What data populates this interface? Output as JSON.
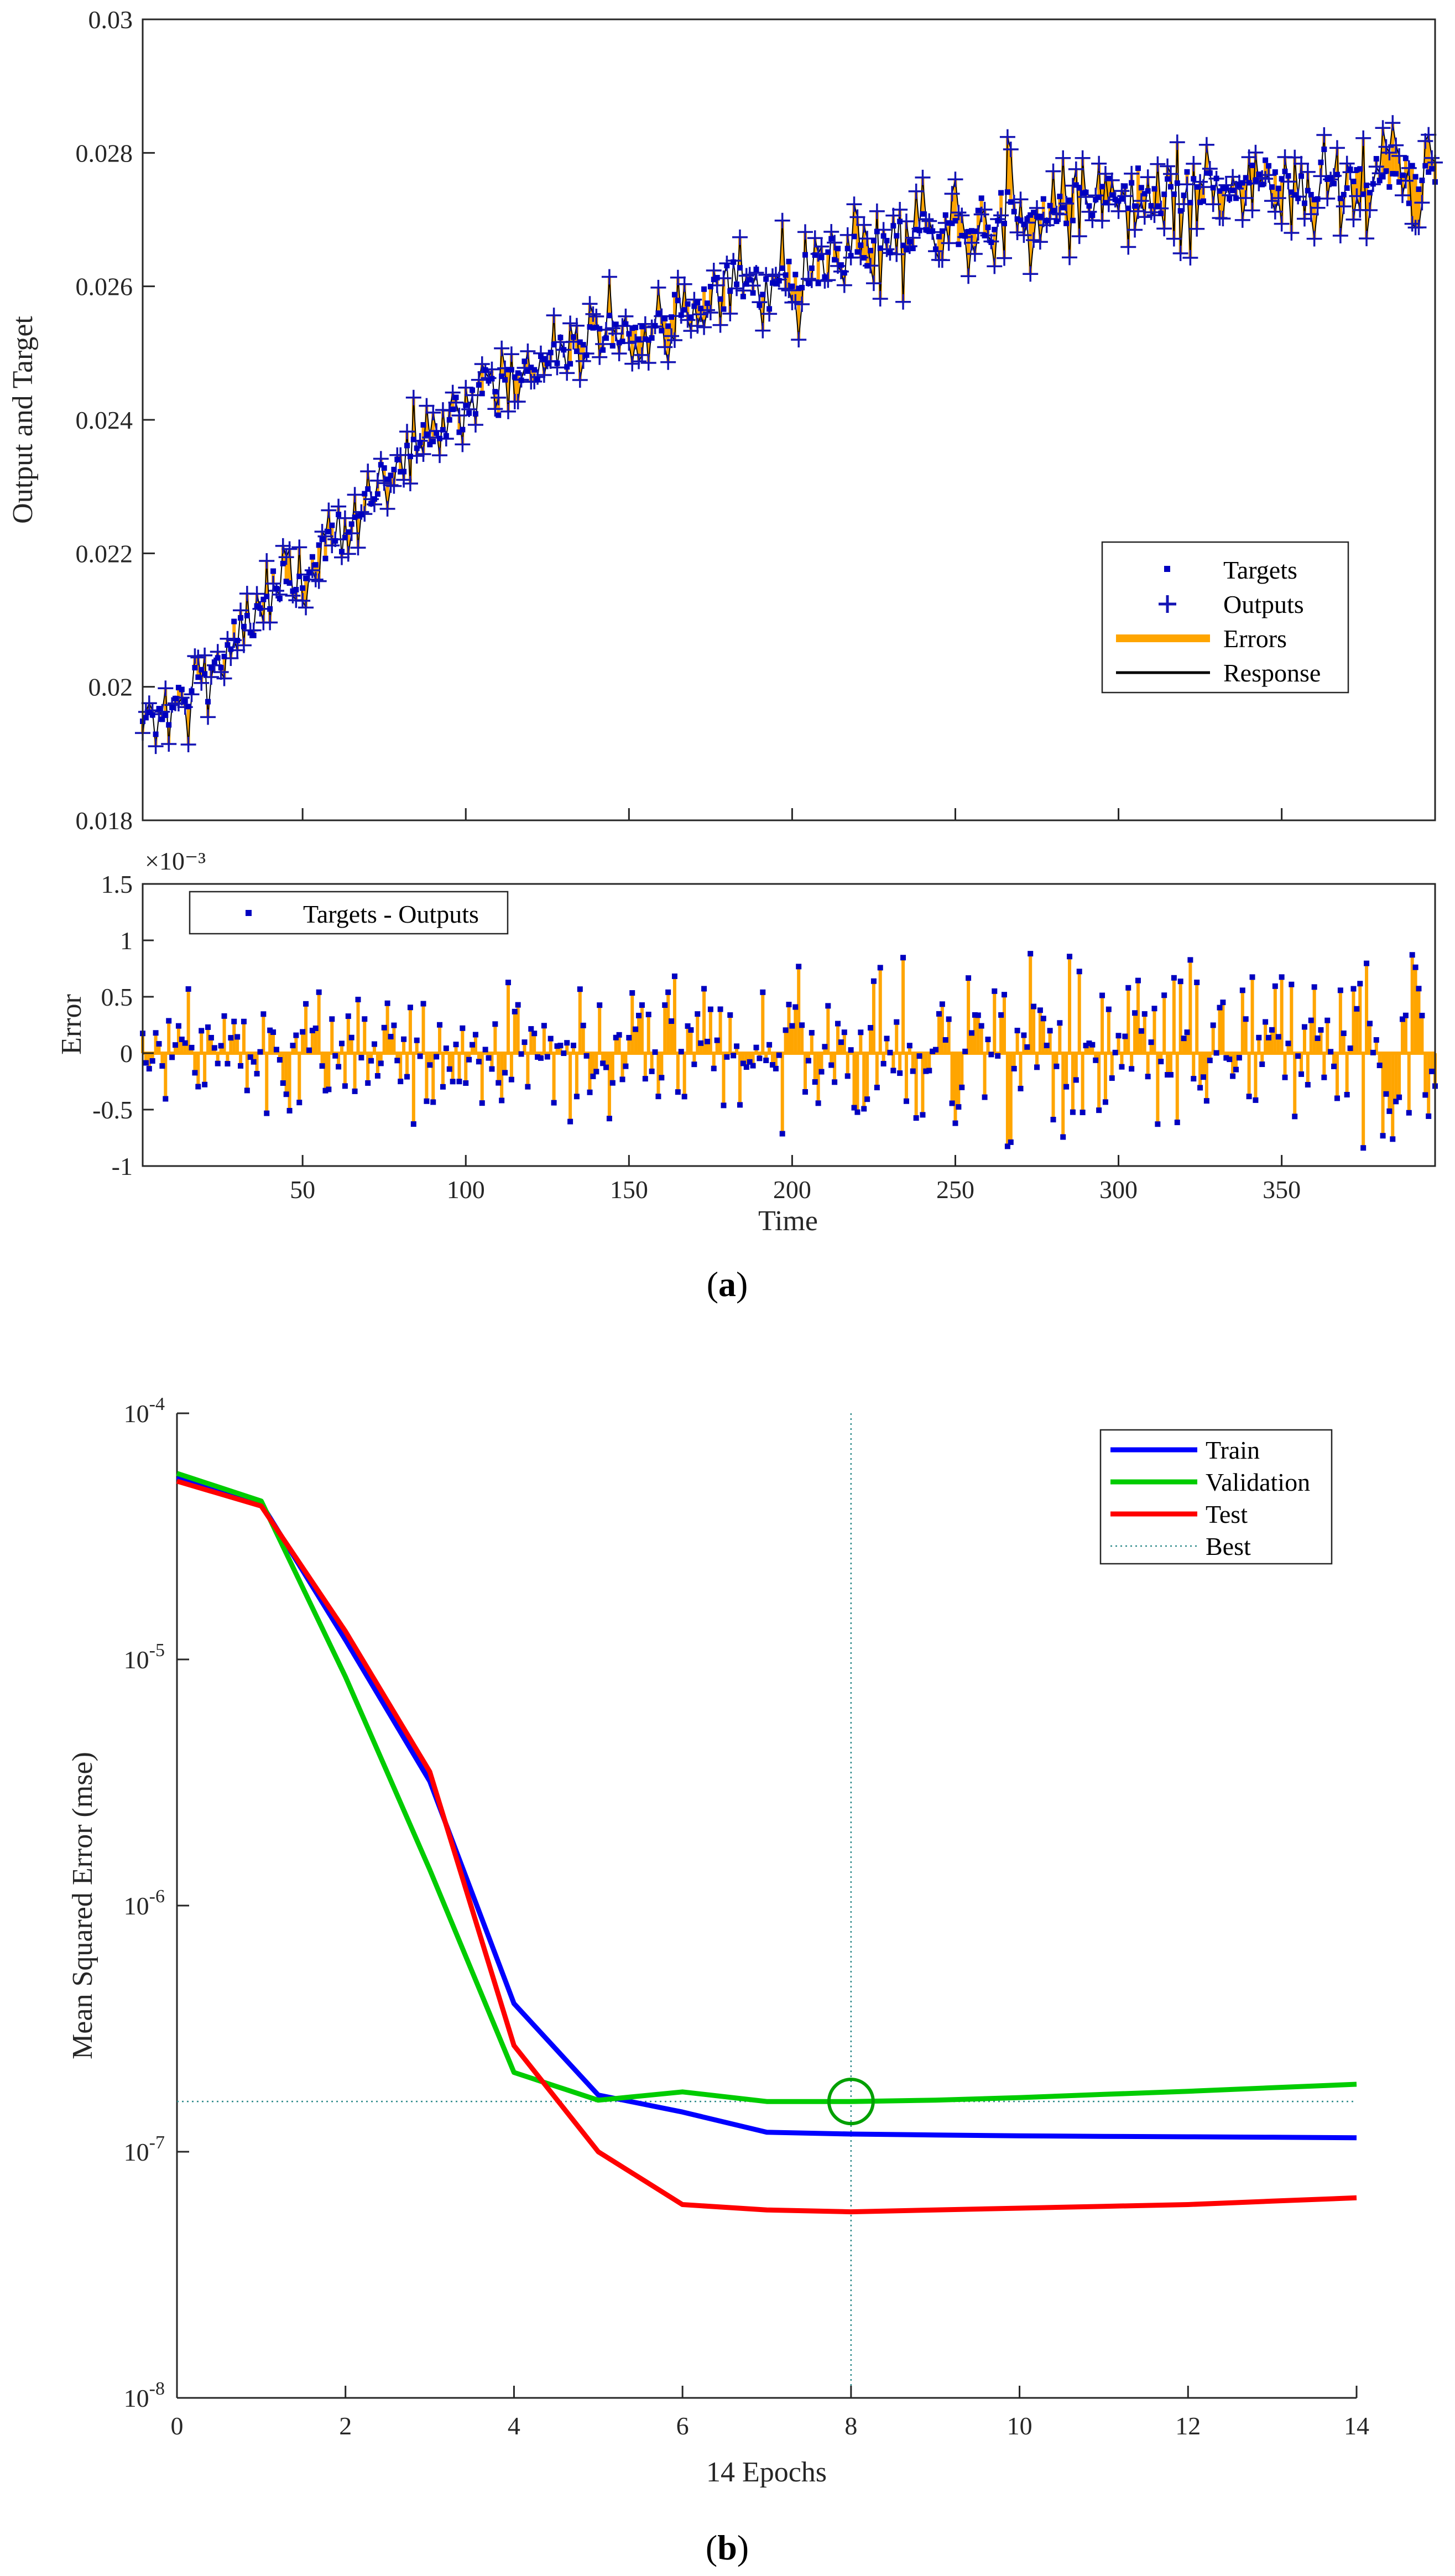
{
  "colors": {
    "targets": "#0000c0",
    "outputs": "#1414b4",
    "errors": "#ffa500",
    "response": "#000000",
    "train": "#0000ff",
    "validation": "#00cc00",
    "test": "#ff0000",
    "best": "#2e8b8b"
  },
  "chart_data": [
    {
      "id": "a",
      "type": "line",
      "caption_letter": "a",
      "ylabel": "Output and Target",
      "xlim": [
        1,
        397
      ],
      "ylim": [
        0.018,
        0.03
      ],
      "yticks": [
        "0.018",
        "0.02",
        "0.022",
        "0.024",
        "0.026",
        "0.028",
        "0.03"
      ],
      "legend": [
        "Targets",
        "Outputs",
        "Errors",
        "Response"
      ],
      "trend_x": [
        1,
        20,
        50,
        75,
        100,
        125,
        150,
        175,
        200,
        225,
        250,
        275,
        300,
        325,
        350,
        375,
        397
      ],
      "trend_y": [
        0.0193,
        0.0202,
        0.0218,
        0.023,
        0.0243,
        0.0249,
        0.0254,
        0.0259,
        0.0262,
        0.0266,
        0.0269,
        0.0271,
        0.0273,
        0.0274,
        0.0276,
        0.0276,
        0.0277
      ]
    },
    {
      "id": "a-error",
      "type": "bar",
      "xlabel": "Time",
      "ylabel": "Error",
      "exponent": "×10⁻³",
      "xlim": [
        1,
        397
      ],
      "ylim": [
        -1,
        1.5
      ],
      "xticks": [
        "50",
        "100",
        "150",
        "200",
        "250",
        "300",
        "350"
      ],
      "yticks": [
        "-1",
        "-0.5",
        "0",
        "0.5",
        "1",
        "1.5"
      ],
      "legend": [
        "Targets - Outputs"
      ],
      "error_envelope_x": [
        1,
        100,
        200,
        250,
        300,
        397
      ],
      "error_envelope": [
        0.55,
        0.55,
        0.65,
        0.9,
        0.9,
        1.0
      ]
    },
    {
      "id": "b",
      "type": "line",
      "caption_letter": "b",
      "xlabel": "14 Epochs",
      "ylabel": "Mean Squared Error  (mse)",
      "yscale": "log",
      "xlim": [
        0,
        14
      ],
      "ylim_exp": [
        -8,
        -4
      ],
      "xticks": [
        "0",
        "2",
        "4",
        "6",
        "8",
        "10",
        "12",
        "14"
      ],
      "ytick_base": "10",
      "ytick_exps": [
        "-8",
        "-7",
        "-6",
        "-5",
        "-4"
      ],
      "best_epoch": 8,
      "best_value": 1.6e-07,
      "series": [
        {
          "name": "Train",
          "color_key": "train",
          "x": [
            0,
            1,
            2,
            3,
            4,
            5,
            6,
            7,
            8,
            9,
            10,
            11,
            12,
            13,
            14
          ],
          "values": [
            5.5e-05,
            4.3e-05,
            1.2e-05,
            3.2e-06,
            4e-07,
            1.7e-07,
            1.45e-07,
            1.2e-07,
            1.18e-07,
            1.17e-07,
            1.16e-07,
            1.155e-07,
            1.15e-07,
            1.145e-07,
            1.14e-07
          ]
        },
        {
          "name": "Validation",
          "color_key": "validation",
          "x": [
            0,
            1,
            2,
            3,
            4,
            5,
            6,
            7,
            8,
            9,
            10,
            11,
            12,
            13,
            14
          ],
          "values": [
            5.7e-05,
            4.4e-05,
            8.5e-06,
            1.4e-06,
            2.1e-07,
            1.62e-07,
            1.75e-07,
            1.6e-07,
            1.6e-07,
            1.62e-07,
            1.66e-07,
            1.71e-07,
            1.76e-07,
            1.82e-07,
            1.88e-07
          ]
        },
        {
          "name": "Test",
          "color_key": "test",
          "x": [
            0,
            1,
            2,
            3,
            4,
            5,
            6,
            7,
            8,
            9,
            10,
            11,
            12,
            13,
            14
          ],
          "values": [
            5.3e-05,
            4.2e-05,
            1.3e-05,
            3.5e-06,
            2.7e-07,
            1e-07,
            6.1e-08,
            5.8e-08,
            5.7e-08,
            5.8e-08,
            5.9e-08,
            6e-08,
            6.1e-08,
            6.3e-08,
            6.5e-08
          ]
        }
      ],
      "legend": [
        "Train",
        "Validation",
        "Test",
        "Best"
      ]
    }
  ]
}
